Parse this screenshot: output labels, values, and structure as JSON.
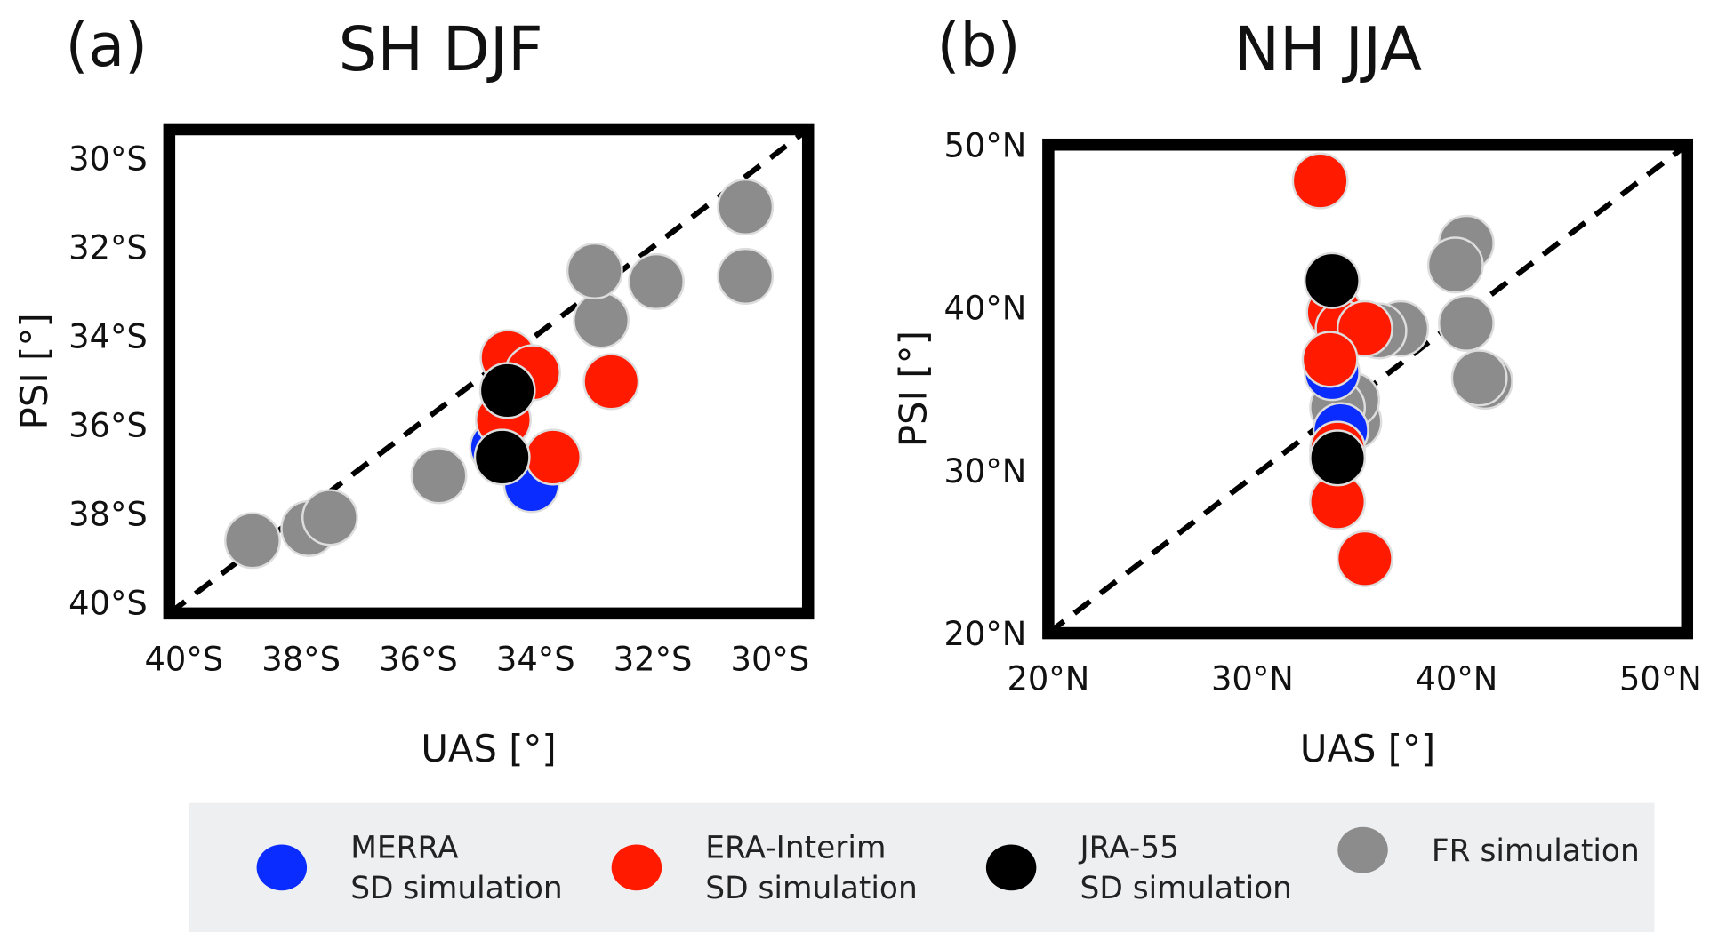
{
  "chart_data": [
    {
      "type": "scatter",
      "panel": "(a)",
      "title": "SH DJF",
      "xlabel": "UAS [°]",
      "ylabel": "PSI [°]",
      "xlim": [
        -40.25,
        -29.35
      ],
      "ylim": [
        -40.25,
        -29.35
      ],
      "xticks": [
        {
          "value": -40,
          "label": "40°S"
        },
        {
          "value": -38,
          "label": "38°S"
        },
        {
          "value": -36,
          "label": "36°S"
        },
        {
          "value": -34,
          "label": "34°S"
        },
        {
          "value": -32,
          "label": "32°S"
        },
        {
          "value": -30,
          "label": "30°S"
        }
      ],
      "yticks": [
        {
          "value": -40,
          "label": "40°S"
        },
        {
          "value": -38,
          "label": "38°S"
        },
        {
          "value": -36,
          "label": "36°S"
        },
        {
          "value": -34,
          "label": "34°S"
        },
        {
          "value": -32,
          "label": "32°S"
        },
        {
          "value": -30,
          "label": "30°S"
        }
      ],
      "series": [
        {
          "name": "MERRA\nSD simulation",
          "color": "#0a2cff",
          "x": [
            -34.65,
            -34.07
          ],
          "values": [
            -36.51,
            -37.35
          ]
        },
        {
          "name": "ERA-Interim\nSD simulation",
          "color": "#ff1a00",
          "x": [
            -34.47,
            -34.05,
            -34.55,
            -33.7,
            -32.71
          ],
          "values": [
            -34.49,
            -34.83,
            -35.89,
            -36.73,
            -35.03
          ]
        },
        {
          "name": "JRA-55\nSD simulation",
          "color": "#000000",
          "x": [
            -34.48,
            -34.57
          ],
          "values": [
            -35.23,
            -36.73
          ]
        },
        {
          "name": "FR simulation",
          "color": "#8c8c8c",
          "x": [
            -38.83,
            -37.87,
            -37.51,
            -35.65,
            -32.88,
            -32.99,
            -31.94,
            -30.42,
            -30.42
          ],
          "values": [
            -38.61,
            -38.34,
            -38.09,
            -37.15,
            -33.65,
            -32.54,
            -32.78,
            -31.1,
            -32.66
          ]
        }
      ]
    },
    {
      "type": "scatter",
      "panel": "(b)",
      "title": "NH JJA",
      "xlabel": "UAS [°]",
      "ylabel": "PSI [°]",
      "xlim": [
        20,
        51.3
      ],
      "ylim": [
        20,
        50
      ],
      "xticks": [
        {
          "value": 20,
          "label": "20°N"
        },
        {
          "value": 30,
          "label": "30°N"
        },
        {
          "value": 40,
          "label": "40°N"
        },
        {
          "value": 50,
          "label": "50°N"
        }
      ],
      "yticks": [
        {
          "value": 20,
          "label": "20°N"
        },
        {
          "value": 30,
          "label": "30°N"
        },
        {
          "value": 40,
          "label": "40°N"
        },
        {
          "value": 50,
          "label": "50°N"
        }
      ],
      "series": [
        {
          "name": "MERRA\nSD simulation",
          "color": "#0a2cff",
          "x": [
            33.9,
            34.33
          ],
          "values": [
            36.0,
            32.44
          ]
        },
        {
          "name": "ERA-Interim\nSD simulation",
          "color": "#ff1a00",
          "x": [
            33.32,
            34.01,
            34.44,
            35.51,
            33.8,
            34.17,
            35.51,
            34.17
          ],
          "values": [
            47.77,
            39.7,
            38.7,
            38.7,
            36.81,
            28.07,
            24.57,
            31.3
          ]
        },
        {
          "name": "JRA-55\nSD simulation",
          "color": "#000000",
          "x": [
            33.9,
            34.17
          ],
          "values": [
            41.65,
            30.76
          ]
        },
        {
          "name": "FR simulation",
          "color": "#8c8c8c",
          "x": [
            40.48,
            39.95,
            40.48,
            41.39,
            41.12,
            37.27,
            36.2,
            34.97,
            34.87,
            34.17
          ],
          "values": [
            43.94,
            42.6,
            39.03,
            35.47,
            35.67,
            38.7,
            38.56,
            32.98,
            34.32,
            33.85
          ]
        }
      ]
    }
  ]
}
